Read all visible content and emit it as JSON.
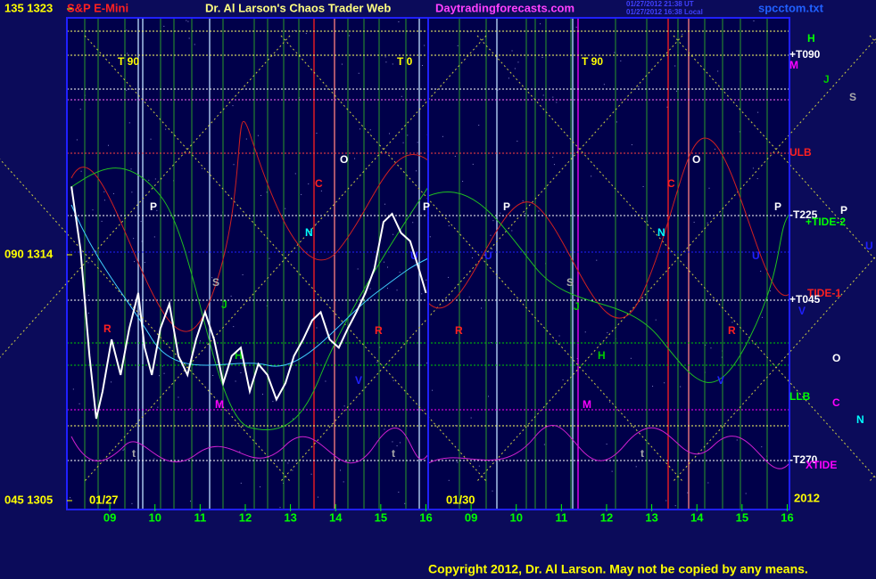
{
  "chart_data": {
    "type": "line",
    "symbol": "S&P E-Mini",
    "title": "Dr. Al Larson's Chaos Trader Web",
    "site": "Daytradingforecasts.com",
    "timestamps": [
      "01/27/2012 21:38 UT",
      "01/27/2012 16:38 Local"
    ],
    "file": "spcctom.txt",
    "copyright": "Copyright 2012, Dr. Al Larson. May not be copied by any means.",
    "ylim": [
      1305,
      1323
    ],
    "yticks": [
      {
        "value": 1305,
        "label": "045 1305"
      },
      {
        "value": 1314,
        "label": "090 1314"
      },
      {
        "value": 1323,
        "label": "135 1323"
      }
    ],
    "xlim": [
      8.05,
      16.05
    ],
    "xticks": [
      {
        "value": 9,
        "label": "09"
      },
      10,
      11,
      12,
      13,
      14,
      15,
      16
    ],
    "sessions": [
      "01/27",
      "01/30"
    ],
    "year": "2012",
    "x": [
      8.15,
      8.35,
      8.55,
      8.7,
      8.84,
      9.04,
      9.24,
      9.43,
      9.63,
      9.77,
      9.93,
      10.12,
      10.32,
      10.52,
      10.72,
      10.91,
      11.11,
      11.31,
      11.51,
      11.7,
      11.9,
      12.1,
      12.29,
      12.49,
      12.69,
      12.89,
      13.08,
      13.28,
      13.48,
      13.67,
      13.87,
      14.07,
      14.27,
      14.46,
      14.66,
      14.86,
      15.06,
      15.25,
      15.45,
      15.65,
      15.84,
      16.0
    ],
    "series": [
      {
        "color": "#ffffff",
        "values": [
          1316.5,
          1314.2,
          1310.3,
          1308.0,
          1309.0,
          1310.9,
          1309.6,
          1311.3,
          1312.6,
          1310.6,
          1309.6,
          1311.3,
          1312.2,
          1310.3,
          1309.6,
          1310.9,
          1311.9,
          1310.9,
          1309.3,
          1310.3,
          1310.6,
          1309.0,
          1310.0,
          1309.6,
          1308.7,
          1309.3,
          1310.3,
          1310.9,
          1311.6,
          1311.9,
          1310.9,
          1310.6,
          1311.3,
          1311.9,
          1312.6,
          1313.5,
          1315.2,
          1315.5,
          1314.8,
          1314.5,
          1313.5,
          1312.6
        ]
      }
    ],
    "annotations": [
      {
        "text": "T  90",
        "color": "#ffff00"
      },
      {
        "text": "T  0",
        "color": "#ffff00"
      },
      {
        "text": "T  90",
        "color": "#ffff00"
      },
      {
        "text": "H",
        "color": "#00ff00"
      },
      {
        "text": "+T090",
        "color": "#ffffff"
      },
      {
        "text": "M",
        "color": "#ff00ff"
      },
      {
        "text": "J",
        "color": "#00cc00"
      },
      {
        "text": "S",
        "color": "#aaaaaa"
      },
      {
        "text": "ULB",
        "color": "#ff2020"
      },
      {
        "text": "-T225",
        "color": "#ffffff"
      },
      {
        "text": "P",
        "color": "#ffffff"
      },
      {
        "text": "+TIDE-2",
        "color": "#00ff00"
      },
      {
        "text": "U",
        "color": "#2020ff"
      },
      {
        "text": "TIDE-1",
        "color": "#ff2020"
      },
      {
        "text": "+T045",
        "color": "#ffffff"
      },
      {
        "text": "V",
        "color": "#2020ff"
      },
      {
        "text": "O",
        "color": "#ffffff"
      },
      {
        "text": "LLB",
        "color": "#00ff00"
      },
      {
        "text": "C",
        "color": "#ff00ff"
      },
      {
        "text": "N",
        "color": "#00ffff"
      },
      {
        "text": "-T270",
        "color": "#ffffff"
      },
      {
        "text": "XTIDE",
        "color": "#ff00ff"
      },
      {
        "text": "P",
        "color": "#ffffff"
      },
      {
        "text": "O",
        "color": "#ffffff"
      },
      {
        "text": "C",
        "color": "#ff2020"
      },
      {
        "text": "N",
        "color": "#00ffff"
      },
      {
        "text": "S",
        "color": "#aaaaaa"
      },
      {
        "text": "J",
        "color": "#00cc00"
      },
      {
        "text": "H",
        "color": "#00cc00"
      },
      {
        "text": "M",
        "color": "#ff00ff"
      },
      {
        "text": "R",
        "color": "#ff2020"
      },
      {
        "text": "R",
        "color": "#ff2020"
      },
      {
        "text": "V",
        "color": "#2020ff"
      },
      {
        "text": "U",
        "color": "#2020ff"
      },
      {
        "text": "P",
        "color": "#ffffff"
      },
      {
        "text": "t",
        "color": "#aaaaaa"
      },
      {
        "text": "t",
        "color": "#aaaaaa"
      },
      {
        "text": "P",
        "color": "#ffffff"
      },
      {
        "text": "U",
        "color": "#2020ff"
      },
      {
        "text": "S",
        "color": "#aaaaaa"
      },
      {
        "text": "J",
        "color": "#00cc00"
      },
      {
        "text": "H",
        "color": "#00cc00"
      },
      {
        "text": "M",
        "color": "#ff00ff"
      },
      {
        "text": "N",
        "color": "#00ffff"
      },
      {
        "text": "C",
        "color": "#ff2020"
      },
      {
        "text": "O",
        "color": "#ffffff"
      },
      {
        "text": "R",
        "color": "#ff2020"
      },
      {
        "text": "P",
        "color": "#ffffff"
      },
      {
        "text": "U",
        "color": "#2020ff"
      },
      {
        "text": "V",
        "color": "#2020ff"
      },
      {
        "text": "t",
        "color": "#aaaaaa"
      },
      {
        "text": "R",
        "color": "#ff2020"
      }
    ]
  }
}
